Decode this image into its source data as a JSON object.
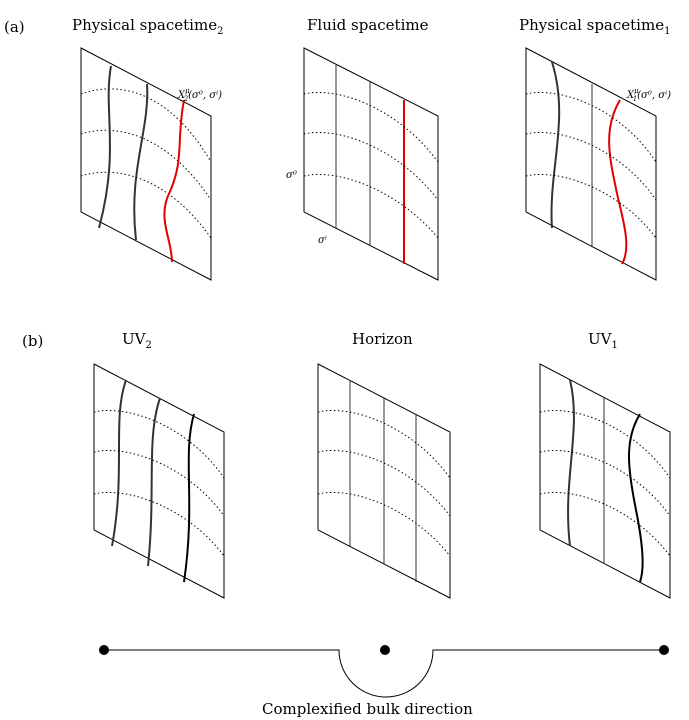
{
  "panel_a": {
    "tag": "(a)",
    "left_title": "Physical spacetime",
    "left_sub": "2",
    "middle_title": "Fluid spacetime",
    "right_title": "Physical spacetime",
    "right_sub": "1",
    "x2_label": "X",
    "x2_sup": "μ",
    "x2_sub": "2",
    "x2_args": "(σ⁰, σⁱ)",
    "x1_label": "X",
    "x1_sup": "μ",
    "x1_sub": "1",
    "x1_args": "(σ⁰, σⁱ)",
    "sigma0": "σ⁰",
    "sigmai": "σⁱ"
  },
  "panel_b": {
    "tag": "(b)",
    "left_title": "UV",
    "left_sub": "2",
    "middle_title": "Horizon",
    "right_title": "UV",
    "right_sub": "1"
  },
  "bulk_caption": "Complexified bulk direction",
  "colors": {
    "highlight": "#e00000",
    "ink": "#000000"
  }
}
